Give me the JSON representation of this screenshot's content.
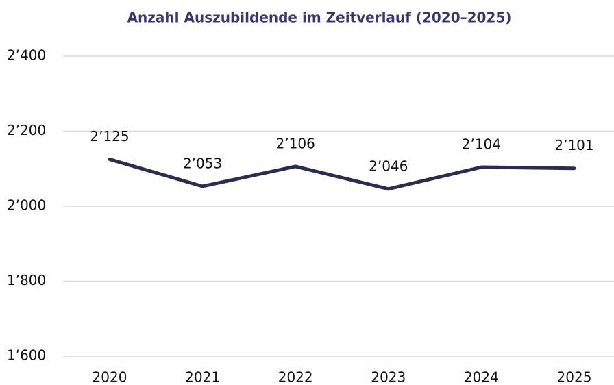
{
  "chart_data": {
    "type": "line",
    "title": "Anzahl Auszubildende im Zeitverlauf (2020–2025)",
    "categories": [
      "2020",
      "2021",
      "2022",
      "2023",
      "2024",
      "2025"
    ],
    "series": [
      {
        "name": "Anzahl Auszubildende",
        "color": "#2e2b52",
        "values": [
          2125,
          2053,
          2106,
          2046,
          2104,
          2101
        ],
        "value_labels": [
          "2’125",
          "2’053",
          "2’106",
          "2’046",
          "2’104",
          "2’101"
        ]
      }
    ],
    "ylim": [
      1600,
      2400
    ],
    "yticks": [
      {
        "value": 1600,
        "label": "1’600"
      },
      {
        "value": 1800,
        "label": "1’800"
      },
      {
        "value": 2000,
        "label": "2’000"
      },
      {
        "value": 2200,
        "label": "2’200"
      },
      {
        "value": 2400,
        "label": "2’400"
      }
    ],
    "grid": true
  }
}
